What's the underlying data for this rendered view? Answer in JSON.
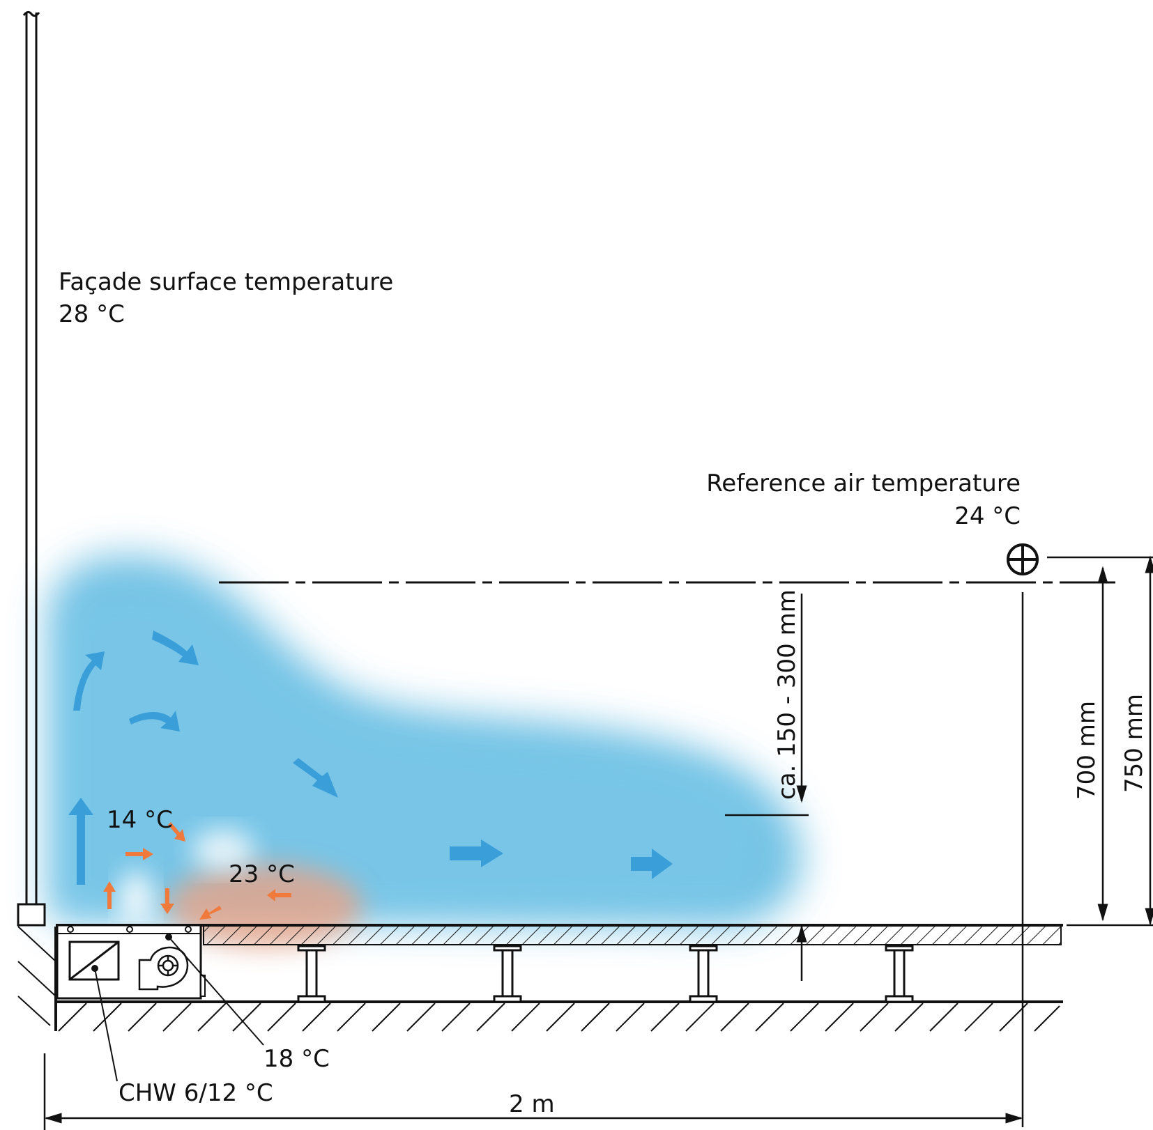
{
  "labels": {
    "facade_title": "Façade surface temperature",
    "facade_temp": "28 °C",
    "reference_title": "Reference air temperature",
    "reference_temp": "24 °C",
    "zone_cold": "14 °C",
    "zone_mixed": "23 °C",
    "supply_air": "18 °C",
    "chilled_water": "CHW 6/12 °C",
    "dim_room_depth": "2 m",
    "dim_layer": "ca. 150 - 300 mm",
    "dim_700": "700 mm",
    "dim_750": "750 mm"
  },
  "colors": {
    "cold_air": "#5bb8e0",
    "cold_arrow": "#3a9fd8",
    "warm_air": "#f0a080",
    "warm_arrow": "#f07a3c",
    "line": "#111111"
  },
  "icons": {
    "reference_point": "crosshair-circle-icon",
    "fan": "centrifugal-fan-icon",
    "coil": "heat-exchanger-icon"
  }
}
